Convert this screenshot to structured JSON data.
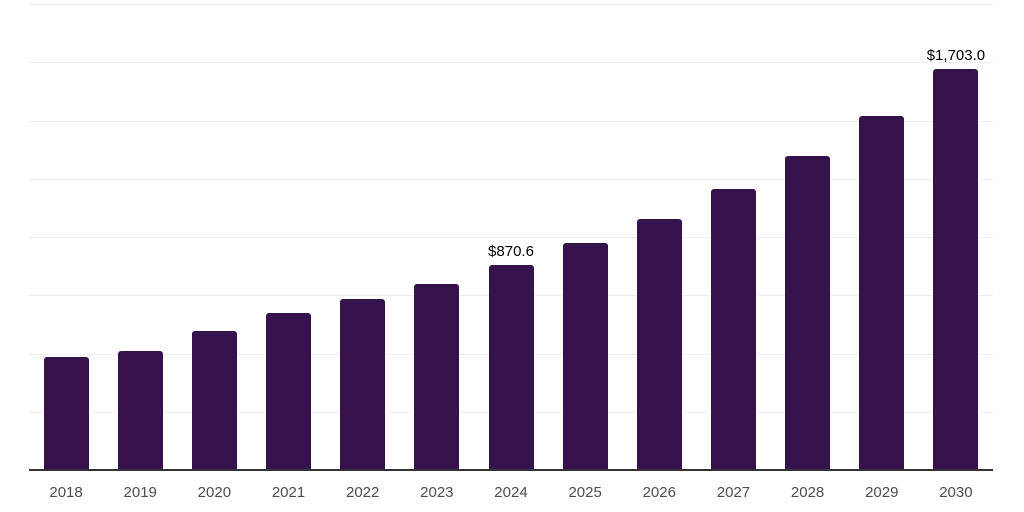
{
  "chart_data": {
    "type": "bar",
    "title": "",
    "xlabel": "",
    "ylabel": "",
    "categories": [
      "2018",
      "2019",
      "2020",
      "2021",
      "2022",
      "2023",
      "2024",
      "2025",
      "2026",
      "2027",
      "2028",
      "2029",
      "2030"
    ],
    "values": [
      479,
      506,
      591,
      666,
      725,
      790,
      870.6,
      963,
      1065,
      1194,
      1335,
      1505,
      1703.0
    ],
    "bar_value_labels": [
      "",
      "",
      "",
      "",
      "",
      "",
      "$870.6",
      "",
      "",
      "",
      "",
      "",
      "$1,703.0"
    ],
    "ylim": [
      0,
      1980
    ],
    "grid": "horizontal",
    "gridline_count": 8,
    "legend_position": "none",
    "colors": {
      "bar": "#35124B",
      "axis_line": "#333333",
      "gridline": "#EFEFEF",
      "tick_label": "#4D4D4D",
      "value_label": "#000000",
      "background": "#FFFFFF"
    }
  }
}
